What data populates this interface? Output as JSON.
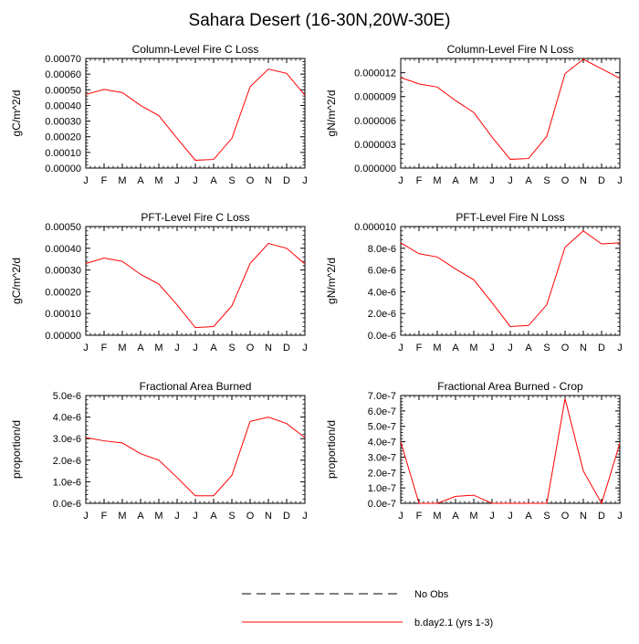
{
  "page": {
    "title": "Sahara Desert (16-30N,20W-30E)"
  },
  "legend": {
    "items": [
      {
        "label": "No Obs",
        "style": "dashed",
        "color": "#000000"
      },
      {
        "label": "b.day2.1 (yrs 1-3)",
        "style": "solid",
        "color": "#ff0000"
      }
    ]
  },
  "chart_data": [
    {
      "type": "line",
      "title": "Column-Level Fire C Loss",
      "ylabel": "gC/m^2/d",
      "categories": [
        "J",
        "F",
        "M",
        "A",
        "M",
        "J",
        "J",
        "A",
        "S",
        "O",
        "N",
        "D",
        "J"
      ],
      "ylim": [
        0,
        0.0007
      ],
      "yticks": [
        0,
        0.0001,
        0.0002,
        0.0003,
        0.0004,
        0.0005,
        0.0006,
        0.0007
      ],
      "ytick_labels": [
        "0.00000",
        "0.00010",
        "0.00020",
        "0.00030",
        "0.00040",
        "0.00050",
        "0.00060",
        "0.00070"
      ],
      "series": [
        {
          "name": "b.day2.1 (yrs 1-3)",
          "color": "#ff0000",
          "values": [
            0.00047,
            0.000502,
            0.000482,
            0.0004,
            0.000335,
            0.00019,
            5e-05,
            5.5e-05,
            0.00019,
            0.00052,
            0.000632,
            0.000605,
            0.000465
          ]
        }
      ]
    },
    {
      "type": "line",
      "title": "Column-Level Fire N Loss",
      "ylabel": "gN/m^2/d",
      "categories": [
        "J",
        "F",
        "M",
        "A",
        "M",
        "J",
        "J",
        "A",
        "S",
        "O",
        "N",
        "D",
        "J"
      ],
      "ylim": [
        0,
        1.38e-05
      ],
      "yticks": [
        0,
        3e-06,
        6e-06,
        9e-06,
        1.2e-05
      ],
      "ytick_labels": [
        "0.000000",
        "0.000003",
        "0.000006",
        "0.000009",
        "0.000012"
      ],
      "series": [
        {
          "name": "b.day2.1 (yrs 1-3)",
          "color": "#ff0000",
          "values": [
            1.14e-05,
            1.06e-05,
            1.02e-05,
            8.5e-06,
            7e-06,
            3.9e-06,
            1.1e-06,
            1.2e-06,
            4e-06,
            1.19e-05,
            1.37e-05,
            1.25e-05,
            1.13e-05
          ]
        }
      ]
    },
    {
      "type": "line",
      "title": "PFT-Level Fire C Loss",
      "ylabel": "gC/m^2/d",
      "categories": [
        "J",
        "F",
        "M",
        "A",
        "M",
        "J",
        "J",
        "A",
        "S",
        "O",
        "N",
        "D",
        "J"
      ],
      "ylim": [
        0,
        0.0005
      ],
      "yticks": [
        0,
        0.0001,
        0.0002,
        0.0003,
        0.0004,
        0.0005
      ],
      "ytick_labels": [
        "0.00000",
        "0.00010",
        "0.00020",
        "0.00030",
        "0.00040",
        "0.00050"
      ],
      "series": [
        {
          "name": "b.day2.1 (yrs 1-3)",
          "color": "#ff0000",
          "values": [
            0.00033,
            0.000355,
            0.00034,
            0.00028,
            0.000235,
            0.00014,
            3.5e-05,
            4e-05,
            0.000135,
            0.00033,
            0.000422,
            0.0004,
            0.000328
          ]
        }
      ]
    },
    {
      "type": "line",
      "title": "PFT-Level Fire N Loss",
      "ylabel": "gN/m^2/d",
      "categories": [
        "J",
        "F",
        "M",
        "A",
        "M",
        "J",
        "J",
        "A",
        "S",
        "O",
        "N",
        "D",
        "J"
      ],
      "ylim": [
        0,
        1e-05
      ],
      "yticks": [
        0,
        2e-06,
        4e-06,
        6e-06,
        8e-06,
        1e-05
      ],
      "ytick_labels": [
        "0.0e-6",
        "2.0e-6",
        "4.0e-6",
        "6.0e-6",
        "8.0e-6",
        "0.000010"
      ],
      "series": [
        {
          "name": "b.day2.1 (yrs 1-3)",
          "color": "#ff0000",
          "values": [
            8.5e-06,
            7.5e-06,
            7.2e-06,
            6.1e-06,
            5.1e-06,
            3e-06,
            8e-07,
            9e-07,
            2.8e-06,
            8.1e-06,
            9.6e-06,
            8.4e-06,
            8.5e-06
          ]
        }
      ]
    },
    {
      "type": "line",
      "title": "Fractional Area Burned",
      "ylabel": "proportion/d",
      "categories": [
        "J",
        "F",
        "M",
        "A",
        "M",
        "J",
        "J",
        "A",
        "S",
        "O",
        "N",
        "D",
        "J"
      ],
      "ylim": [
        0,
        5e-06
      ],
      "yticks": [
        0,
        1e-06,
        2e-06,
        3e-06,
        4e-06,
        5e-06
      ],
      "ytick_labels": [
        "0.0e-6",
        "1.0e-6",
        "2.0e-6",
        "3.0e-6",
        "4.0e-6",
        "5.0e-6"
      ],
      "series": [
        {
          "name": "b.day2.1 (yrs 1-3)",
          "color": "#ff0000",
          "values": [
            3.05e-06,
            2.9e-06,
            2.8e-06,
            2.3e-06,
            2e-06,
            1.2e-06,
            3.5e-07,
            3.5e-07,
            1.3e-06,
            3.8e-06,
            4e-06,
            3.7e-06,
            3.05e-06
          ]
        }
      ]
    },
    {
      "type": "line",
      "title": "Fractional Area Burned - Crop",
      "ylabel": "proportion/d",
      "categories": [
        "J",
        "F",
        "M",
        "A",
        "M",
        "J",
        "J",
        "A",
        "S",
        "O",
        "N",
        "D",
        "J"
      ],
      "ylim": [
        0,
        7e-07
      ],
      "yticks": [
        0,
        1e-07,
        2e-07,
        3e-07,
        4e-07,
        5e-07,
        6e-07,
        7e-07
      ],
      "ytick_labels": [
        "0.0e-7",
        "1.0e-7",
        "2.0e-7",
        "3.0e-7",
        "4.0e-7",
        "5.0e-7",
        "6.0e-7",
        "7.0e-7"
      ],
      "series": [
        {
          "name": "b.day2.1 (yrs 1-3)",
          "color": "#ff0000",
          "values": [
            4e-07,
            0,
            0,
            4.5e-08,
            5.3e-08,
            0,
            0,
            0,
            0,
            6.8e-07,
            2.1e-07,
            0,
            3.9e-07
          ]
        }
      ]
    }
  ]
}
